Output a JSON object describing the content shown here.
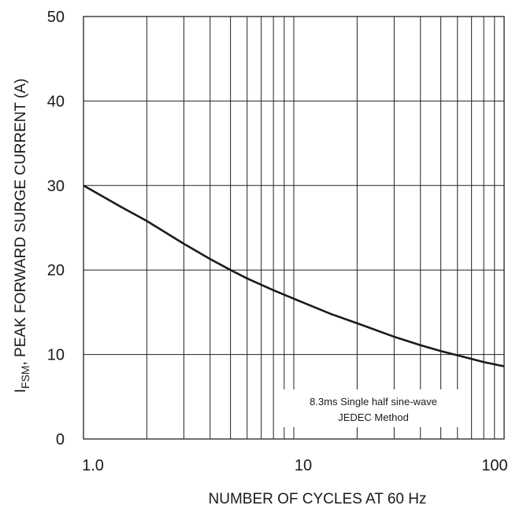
{
  "chart_data": {
    "type": "line",
    "title": "",
    "xlabel": "NUMBER OF CYCLES AT 60 Hz",
    "ylabel": {
      "prefix": "I",
      "subscript": "FSM",
      "suffix": ", PEAK FORWARD SURGE CURRENT (A)"
    },
    "x_scale": "log",
    "xlim": [
      1,
      100
    ],
    "ylim": [
      0,
      50
    ],
    "x_ticks": [
      {
        "value": 1,
        "label": "1.0"
      },
      {
        "value": 10,
        "label": "10"
      },
      {
        "value": 100,
        "label": "100"
      }
    ],
    "y_ticks": [
      {
        "value": 0,
        "label": "0"
      },
      {
        "value": 10,
        "label": "10"
      },
      {
        "value": 20,
        "label": "20"
      },
      {
        "value": 30,
        "label": "30"
      },
      {
        "value": 40,
        "label": "40"
      },
      {
        "value": 50,
        "label": "50"
      }
    ],
    "grid": true,
    "series": [
      {
        "x": [
          1,
          1.5,
          2,
          3,
          4,
          5,
          6,
          8,
          10,
          15,
          20,
          30,
          40,
          50,
          60,
          80,
          100
        ],
        "y": [
          30,
          27.5,
          25.8,
          23.1,
          21.3,
          20,
          19,
          17.6,
          16.6,
          14.8,
          13.7,
          12.1,
          11.1,
          10.4,
          9.9,
          9.1,
          8.6
        ]
      }
    ],
    "annotations": [
      {
        "lines": [
          "8.3ms Single half sine-wave",
          "JEDEC Method"
        ],
        "position": "bottom-right"
      }
    ]
  }
}
